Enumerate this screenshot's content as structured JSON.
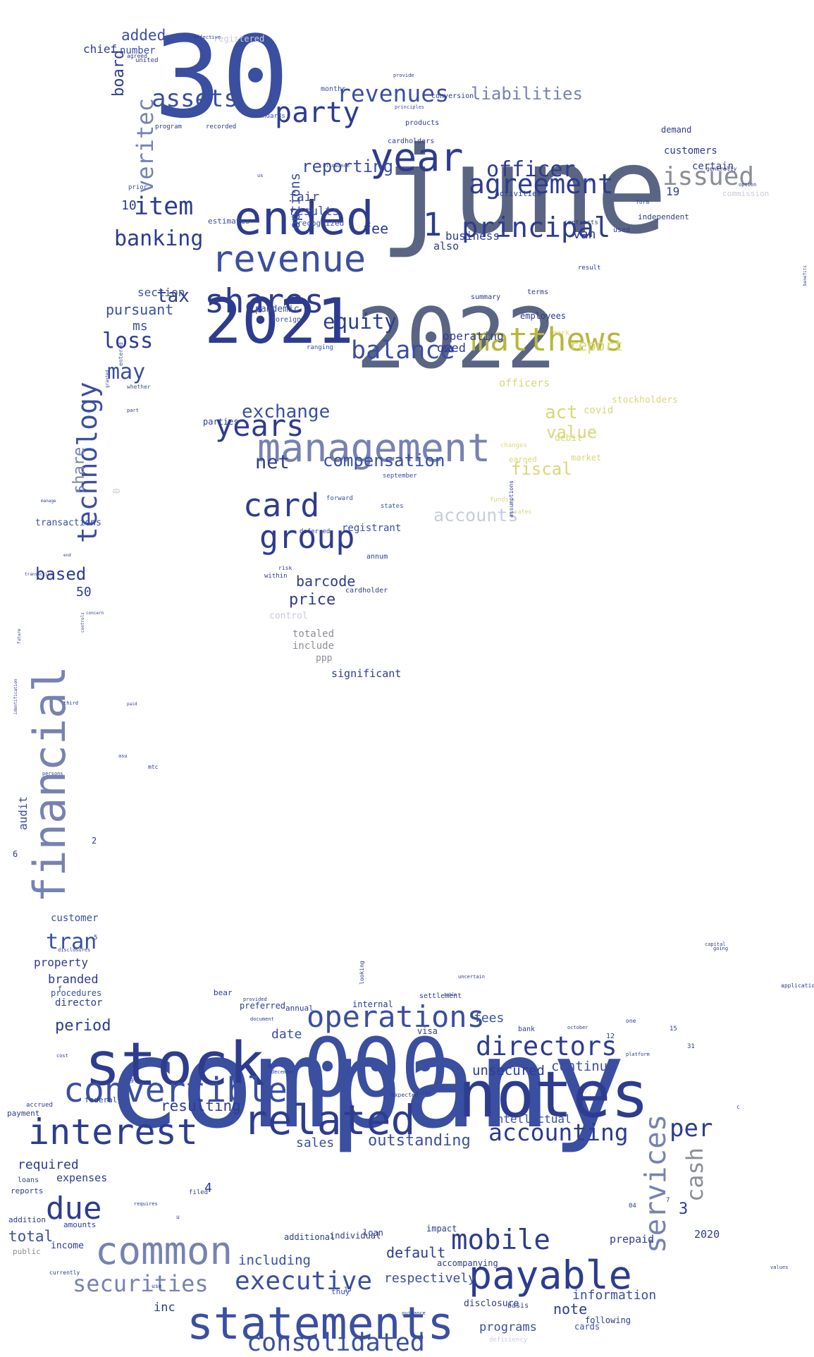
{
  "palette": {
    "navy": "#2d3c8e",
    "blue": "#3a4fa0",
    "slate": "#5a6584",
    "steel": "#7782b2",
    "olive": "#b8b73c",
    "yellow": "#d8d87a",
    "gray": "#8b8e96",
    "pale": "#c8ccdc",
    "black": "#222222"
  },
  "words": [
    {
      "text": "company"
    },
    {
      "text": "june"
    },
    {
      "text": "30"
    },
    {
      "text": "2022"
    },
    {
      "text": "2021"
    },
    {
      "text": "ended"
    },
    {
      "text": "management"
    },
    {
      "text": "revenue"
    },
    {
      "text": "matthews"
    },
    {
      "text": "shares"
    },
    {
      "text": "year"
    },
    {
      "text": "agreement"
    },
    {
      "text": "principal"
    },
    {
      "text": "issued"
    },
    {
      "text": "item"
    },
    {
      "text": "party"
    },
    {
      "text": "revenues"
    },
    {
      "text": "assets"
    },
    {
      "text": "banking"
    },
    {
      "text": "card"
    },
    {
      "text": "group"
    },
    {
      "text": "balance"
    },
    {
      "text": "years"
    },
    {
      "text": "officer"
    },
    {
      "text": "liabilities"
    },
    {
      "text": "veritec"
    },
    {
      "text": "financial"
    },
    {
      "text": "technology"
    },
    {
      "text": "stock"
    },
    {
      "text": "000"
    },
    {
      "text": "notes"
    },
    {
      "text": "convertible"
    },
    {
      "text": "related"
    },
    {
      "text": "interest"
    },
    {
      "text": "statements"
    },
    {
      "text": "payable"
    },
    {
      "text": "common"
    },
    {
      "text": "due"
    },
    {
      "text": "operations"
    },
    {
      "text": "directors"
    },
    {
      "text": "accounting"
    },
    {
      "text": "mobile"
    },
    {
      "text": "executive"
    },
    {
      "text": "consolidated"
    },
    {
      "text": "securities"
    },
    {
      "text": "services"
    },
    {
      "text": "cash"
    },
    {
      "text": "per"
    },
    {
      "text": "loss"
    },
    {
      "text": "may"
    },
    {
      "text": "equity"
    },
    {
      "text": "reporting"
    },
    {
      "text": "tax"
    },
    {
      "text": "exchange"
    },
    {
      "text": "net"
    },
    {
      "text": "compensation"
    },
    {
      "text": "act"
    },
    {
      "text": "value"
    },
    {
      "text": "fiscal"
    },
    {
      "text": "accounts"
    },
    {
      "text": "report"
    },
    {
      "text": "added"
    },
    {
      "text": "chief"
    },
    {
      "text": "board"
    },
    {
      "text": "number"
    },
    {
      "text": "options"
    },
    {
      "text": "tran"
    },
    {
      "text": "based"
    },
    {
      "text": "share"
    },
    {
      "text": "barcode"
    },
    {
      "text": "price"
    },
    {
      "text": "fee"
    },
    {
      "text": "1"
    },
    {
      "text": "pursuant"
    },
    {
      "text": "ms"
    },
    {
      "text": "section"
    },
    {
      "text": "owed"
    },
    {
      "text": "operating"
    },
    {
      "text": "officers"
    },
    {
      "text": "business"
    },
    {
      "text": "also"
    },
    {
      "text": "van"
    },
    {
      "text": "fair"
    },
    {
      "text": "results"
    },
    {
      "text": "customers"
    },
    {
      "text": "certain"
    },
    {
      "text": "demand"
    },
    {
      "text": "period"
    },
    {
      "text": "date"
    },
    {
      "text": "fees"
    },
    {
      "text": "continue"
    },
    {
      "text": "unsecured"
    },
    {
      "text": "resulting"
    },
    {
      "text": "default"
    },
    {
      "text": "including"
    },
    {
      "text": "respectively"
    },
    {
      "text": "outstanding"
    },
    {
      "text": "sales"
    },
    {
      "text": "intellectual"
    },
    {
      "text": "note"
    },
    {
      "text": "programs"
    },
    {
      "text": "total"
    },
    {
      "text": "required"
    },
    {
      "text": "expenses"
    },
    {
      "text": "income"
    },
    {
      "text": "inc"
    },
    {
      "text": "information"
    },
    {
      "text": "property"
    },
    {
      "text": "branded"
    },
    {
      "text": "procedures"
    },
    {
      "text": "director"
    },
    {
      "text": "audit"
    },
    {
      "text": "customer"
    },
    {
      "text": "transactions"
    },
    {
      "text": "0"
    },
    {
      "text": "10"
    },
    {
      "text": "50"
    },
    {
      "text": "2"
    },
    {
      "text": "3"
    },
    {
      "text": "4"
    },
    {
      "text": "19"
    },
    {
      "text": "2020"
    },
    {
      "text": "prepaid"
    },
    {
      "text": "covid"
    },
    {
      "text": "stockholders"
    },
    {
      "text": "debit"
    },
    {
      "text": "market"
    },
    {
      "text": "parties"
    },
    {
      "text": "registrant"
    },
    {
      "text": "totaled"
    },
    {
      "text": "include"
    },
    {
      "text": "ppp"
    },
    {
      "text": "significant"
    },
    {
      "text": "control"
    },
    {
      "text": "pandemic"
    },
    {
      "text": "estimates"
    },
    {
      "text": "recognized"
    },
    {
      "text": "used"
    },
    {
      "text": "independent"
    },
    {
      "text": "commission"
    },
    {
      "text": "activities"
    },
    {
      "text": "conversion"
    },
    {
      "text": "products"
    },
    {
      "text": "cardholders"
    },
    {
      "text": "program"
    },
    {
      "text": "recorded"
    },
    {
      "text": "standards"
    },
    {
      "text": "prior"
    },
    {
      "text": "registered"
    },
    {
      "text": "united"
    },
    {
      "text": "months"
    },
    {
      "text": "result"
    },
    {
      "text": "contracts"
    },
    {
      "text": "form"
    },
    {
      "text": "see"
    },
    {
      "text": "terms"
    },
    {
      "text": "employees"
    },
    {
      "text": "mark"
    },
    {
      "text": "annum"
    },
    {
      "text": "cardholder"
    },
    {
      "text": "deferred"
    },
    {
      "text": "forward"
    },
    {
      "text": "september"
    },
    {
      "text": "states"
    },
    {
      "text": "foreign"
    },
    {
      "text": "ranging"
    },
    {
      "text": "whether"
    },
    {
      "text": "entered"
    },
    {
      "text": "preferred"
    },
    {
      "text": "internal"
    },
    {
      "text": "settlement"
    },
    {
      "text": "visa"
    },
    {
      "text": "bank"
    },
    {
      "text": "additional"
    },
    {
      "text": "individual"
    },
    {
      "text": "loan"
    },
    {
      "text": "impact"
    },
    {
      "text": "accompanying"
    },
    {
      "text": "thuy"
    },
    {
      "text": "disclosure"
    },
    {
      "text": "following"
    },
    {
      "text": "cards"
    },
    {
      "text": "federal"
    },
    {
      "text": "payment"
    },
    {
      "text": "accrued"
    },
    {
      "text": "reports"
    },
    {
      "text": "loans"
    },
    {
      "text": "addition"
    },
    {
      "text": "amounts"
    },
    {
      "text": "public"
    },
    {
      "text": "f"
    },
    {
      "text": "5"
    },
    {
      "text": "6"
    },
    {
      "text": "31"
    },
    {
      "text": "bear"
    },
    {
      "text": "annual"
    },
    {
      "text": "basis"
    },
    {
      "text": "deficiency"
    },
    {
      "text": "looking"
    },
    {
      "text": "persons"
    },
    {
      "text": "disclosures"
    },
    {
      "text": "mtc"
    },
    {
      "text": "uncertain"
    },
    {
      "text": "table"
    },
    {
      "text": "going"
    },
    {
      "text": "capital"
    },
    {
      "text": "asu"
    },
    {
      "text": "granted"
    },
    {
      "text": "transaction"
    },
    {
      "text": "end"
    },
    {
      "text": "concern"
    },
    {
      "text": "controls"
    },
    {
      "text": "future"
    },
    {
      "text": "manage"
    },
    {
      "text": "paid"
    },
    {
      "text": "benefits"
    },
    {
      "text": "effective"
    },
    {
      "text": "identification"
    },
    {
      "text": "october"
    },
    {
      "text": "platform"
    },
    {
      "text": "cost"
    },
    {
      "text": "filer"
    },
    {
      "text": "december"
    },
    {
      "text": "document"
    },
    {
      "text": "provided"
    },
    {
      "text": "requires"
    },
    {
      "text": "currently"
    },
    {
      "text": "allowance"
    },
    {
      "text": "rates"
    },
    {
      "text": "assumptions"
    },
    {
      "text": "option"
    },
    {
      "text": "funds"
    },
    {
      "text": "changes"
    },
    {
      "text": "summary"
    },
    {
      "text": "earned"
    },
    {
      "text": "within"
    },
    {
      "text": "risk"
    },
    {
      "text": "filed"
    },
    {
      "text": "12"
    },
    {
      "text": "13"
    },
    {
      "text": "15"
    },
    {
      "text": "04"
    },
    {
      "text": "7"
    },
    {
      "text": "8"
    },
    {
      "text": "9"
    },
    {
      "text": "c"
    },
    {
      "text": "u"
    },
    {
      "text": "use"
    },
    {
      "text": "us"
    },
    {
      "text": "provide"
    },
    {
      "text": "principles"
    },
    {
      "text": "generally"
    },
    {
      "text": "agreed"
    },
    {
      "text": "applications"
    },
    {
      "text": "guidance"
    },
    {
      "text": "values"
    },
    {
      "text": "expected"
    },
    {
      "text": "one"
    },
    {
      "text": "part"
    },
    {
      "text": "third"
    },
    {
      "text": "upon"
    }
  ]
}
